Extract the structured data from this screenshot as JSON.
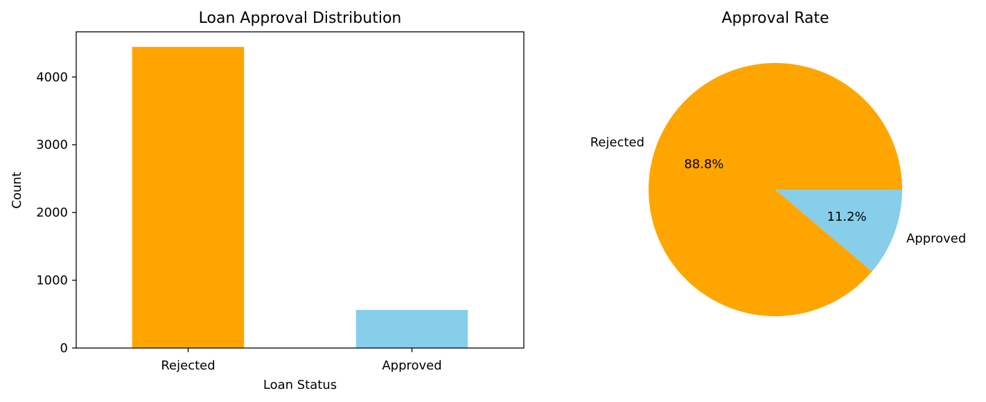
{
  "chart_data": [
    {
      "type": "bar",
      "title": "Loan Approval Distribution",
      "xlabel": "Loan Status",
      "ylabel": "Count",
      "categories": [
        "Rejected",
        "Approved"
      ],
      "values": [
        4445,
        562
      ],
      "colors": [
        "#FFA500",
        "#87CEEB"
      ],
      "ylim": [
        0,
        4667
      ],
      "yticks": [
        0,
        1000,
        2000,
        3000,
        4000
      ],
      "grid": false
    },
    {
      "type": "pie",
      "title": "Approval Rate",
      "labels": [
        "Rejected",
        "Approved"
      ],
      "percent_labels": [
        "88.8%",
        "11.2%"
      ],
      "values": [
        88.8,
        11.2
      ],
      "colors": [
        "#FFA500",
        "#87CEEB"
      ]
    }
  ]
}
